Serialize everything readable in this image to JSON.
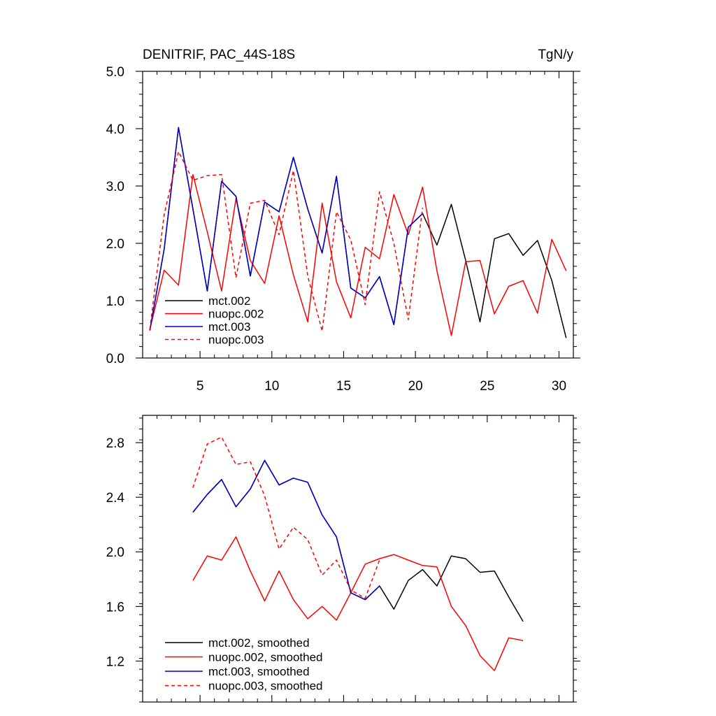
{
  "chart_data": [
    {
      "type": "line",
      "title": "DENITRIF, PAC_44S-18S",
      "units": "TgN/y",
      "xlabel": "",
      "ylabel": "",
      "xlim": [
        1,
        31
      ],
      "ylim": [
        0,
        5
      ],
      "x_ticks": [
        5,
        10,
        15,
        20,
        25,
        30
      ],
      "y_ticks": [
        0,
        1,
        2,
        3,
        4,
        5
      ],
      "y_tick_labels": [
        "0.0",
        "1.0",
        "2.0",
        "3.0",
        "4.0",
        "5.0"
      ],
      "legend_position": "bottom-left",
      "series": [
        {
          "name": "mct.002",
          "color": "#000000",
          "dash": "solid",
          "x": [
            1.5,
            2.5,
            3.5,
            4.5,
            5.5,
            6.5,
            7.5,
            8.5,
            9.5,
            10.5,
            11.5,
            12.5,
            13.5,
            14.5,
            15.5,
            16.5,
            17.5,
            18.5,
            19.5,
            20.5,
            21.5,
            22.5,
            23.5,
            24.5,
            25.5,
            26.5,
            27.5,
            28.5,
            29.5,
            30.5
          ],
          "values": [
            0.48,
            1.9,
            4.02,
            2.6,
            1.17,
            3.08,
            2.82,
            1.43,
            2.72,
            2.55,
            3.5,
            2.6,
            1.83,
            3.17,
            1.22,
            1.05,
            1.42,
            0.58,
            2.28,
            2.52,
            1.97,
            2.68,
            1.7,
            0.63,
            2.08,
            2.17,
            1.79,
            2.05,
            1.35,
            0.35
          ]
        },
        {
          "name": "nuopc.002",
          "color": "#ff0000",
          "dash": "solid",
          "x": [
            1.5,
            2.5,
            3.5,
            4.5,
            5.5,
            6.5,
            7.5,
            8.5,
            9.5,
            10.5,
            11.5,
            12.5,
            13.5,
            14.5,
            15.5,
            16.5,
            17.5,
            18.5,
            19.5,
            20.5,
            21.5,
            22.5,
            23.5,
            24.5,
            25.5,
            26.5,
            27.5,
            28.5,
            29.5,
            30.5
          ],
          "values": [
            0.5,
            1.53,
            1.27,
            3.2,
            2.2,
            1.17,
            2.78,
            1.7,
            1.3,
            2.48,
            1.45,
            0.63,
            2.7,
            1.33,
            0.7,
            1.93,
            1.73,
            2.85,
            2.15,
            2.98,
            1.52,
            0.39,
            1.68,
            1.7,
            0.77,
            1.25,
            1.35,
            0.78,
            2.07,
            1.52
          ]
        },
        {
          "name": "mct.003",
          "color": "#0000cc",
          "dash": "solid",
          "x": [
            1.5,
            2.5,
            3.5,
            4.5,
            5.5,
            6.5,
            7.5,
            8.5,
            9.5,
            10.5,
            11.5,
            12.5,
            13.5,
            14.5,
            15.5,
            16.5,
            17.5,
            18.5,
            19.5,
            20.5
          ],
          "values": [
            0.48,
            1.9,
            4.02,
            2.6,
            1.17,
            3.08,
            2.82,
            1.43,
            2.72,
            2.55,
            3.5,
            2.6,
            1.83,
            3.17,
            1.22,
            1.05,
            1.42,
            0.58,
            2.28,
            2.52
          ]
        },
        {
          "name": "nuopc.003",
          "color": "#ff0000",
          "dash": "dashed",
          "x": [
            1.5,
            2.5,
            3.5,
            4.5,
            5.5,
            6.5,
            7.5,
            8.5,
            9.5,
            10.5,
            11.5,
            12.5,
            13.5,
            14.5,
            15.5,
            16.5,
            17.5,
            18.5,
            19.5,
            20.5
          ],
          "values": [
            0.5,
            2.5,
            3.6,
            3.1,
            3.18,
            3.2,
            1.4,
            2.7,
            2.75,
            2.15,
            3.27,
            1.43,
            0.47,
            2.55,
            2.06,
            0.93,
            2.9,
            2.0,
            0.67,
            2.62
          ]
        }
      ]
    },
    {
      "type": "line",
      "title": "",
      "xlabel": "",
      "ylabel": "",
      "xlim": [
        1,
        31
      ],
      "ylim": [
        0.9,
        3.0
      ],
      "x_ticks": [
        5,
        10,
        15,
        20,
        25,
        30
      ],
      "y_ticks": [
        1.2,
        1.6,
        2.0,
        2.4,
        2.8
      ],
      "y_tick_labels": [
        "1.2",
        "1.6",
        "2.0",
        "2.4",
        "2.8"
      ],
      "legend_position": "bottom-left",
      "series": [
        {
          "name": "mct.002, smoothed",
          "color": "#000000",
          "dash": "solid",
          "x": [
            4.5,
            5.5,
            6.5,
            7.5,
            8.5,
            9.5,
            10.5,
            11.5,
            12.5,
            13.5,
            14.5,
            15.5,
            16.5,
            17.5,
            18.5,
            19.5,
            20.5,
            21.5,
            22.5,
            23.5,
            24.5,
            25.5,
            26.5,
            27.5
          ],
          "values": [
            2.29,
            2.42,
            2.53,
            2.33,
            2.46,
            2.67,
            2.49,
            2.54,
            2.51,
            2.27,
            2.11,
            1.7,
            1.65,
            1.75,
            1.58,
            1.79,
            1.87,
            1.75,
            1.97,
            1.95,
            1.85,
            1.86,
            1.67,
            1.49
          ]
        },
        {
          "name": "nuopc.002, smoothed",
          "color": "#ff0000",
          "dash": "solid",
          "x": [
            4.5,
            5.5,
            6.5,
            7.5,
            8.5,
            9.5,
            10.5,
            11.5,
            12.5,
            13.5,
            14.5,
            15.5,
            16.5,
            17.5,
            18.5,
            19.5,
            20.5,
            21.5,
            22.5,
            23.5,
            24.5,
            25.5,
            26.5,
            27.5
          ],
          "values": [
            1.79,
            1.97,
            1.94,
            2.11,
            1.86,
            1.64,
            1.86,
            1.65,
            1.51,
            1.6,
            1.5,
            1.7,
            1.91,
            1.95,
            1.98,
            1.94,
            1.9,
            1.89,
            1.6,
            1.46,
            1.24,
            1.13,
            1.37,
            1.35
          ]
        },
        {
          "name": "mct.003, smoothed",
          "color": "#0000cc",
          "dash": "solid",
          "x": [
            4.5,
            5.5,
            6.5,
            7.5,
            8.5,
            9.5,
            10.5,
            11.5,
            12.5,
            13.5,
            14.5,
            15.5,
            16.5,
            17.5
          ],
          "values": [
            2.29,
            2.42,
            2.53,
            2.33,
            2.46,
            2.67,
            2.49,
            2.54,
            2.51,
            2.27,
            2.11,
            1.7,
            1.65,
            1.75
          ]
        },
        {
          "name": "nuopc.003, smoothed",
          "color": "#ff0000",
          "dash": "dashed",
          "x": [
            4.5,
            5.5,
            6.5,
            7.5,
            8.5,
            9.5,
            10.5,
            11.5,
            12.5,
            13.5,
            14.5,
            15.5,
            16.5,
            17.5
          ],
          "values": [
            2.47,
            2.79,
            2.84,
            2.64,
            2.66,
            2.41,
            2.02,
            2.18,
            2.09,
            1.83,
            1.94,
            1.72,
            1.66,
            1.94
          ]
        }
      ]
    }
  ]
}
